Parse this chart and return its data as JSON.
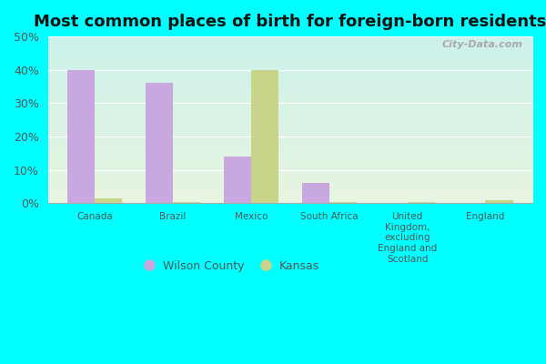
{
  "title": "Most common places of birth for foreign-born residents",
  "categories": [
    "Canada",
    "Brazil",
    "Mexico",
    "South Africa",
    "United\nKingdom,\nexcluding\nEngland and\nScotland",
    "England"
  ],
  "wilson_county": [
    40,
    36,
    14,
    6,
    0,
    0
  ],
  "kansas": [
    1.5,
    0.5,
    40,
    0.5,
    0.5,
    1.0
  ],
  "wilson_color": "#c9a8e0",
  "kansas_color": "#c8d48a",
  "ylim": [
    0,
    50
  ],
  "yticks": [
    0,
    10,
    20,
    30,
    40,
    50
  ],
  "ytick_labels": [
    "0%",
    "10%",
    "20%",
    "30%",
    "40%",
    "50%"
  ],
  "background_color": "#00FFFF",
  "plot_bg_top": "#e8f5e0",
  "plot_bg_bottom": "#d0f5f0",
  "title_fontsize": 13,
  "bar_width": 0.35,
  "watermark": "City-Data.com",
  "legend_wilson": "Wilson County",
  "legend_kansas": "Kansas"
}
